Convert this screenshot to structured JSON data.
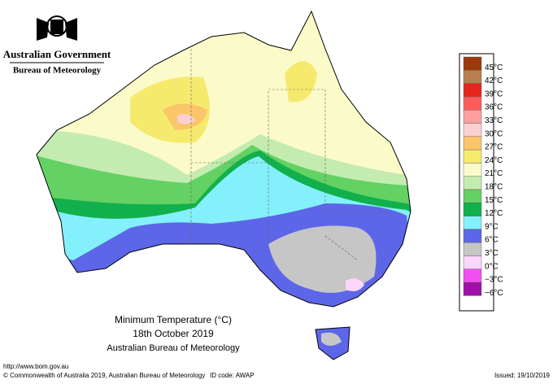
{
  "header": {
    "government": "Australian Government",
    "bureau": "Bureau of Meteorology"
  },
  "legend": {
    "items": [
      {
        "label": "45°C",
        "color": "#9b3a0c"
      },
      {
        "label": "42°C",
        "color": "#b97f4f"
      },
      {
        "label": "39°C",
        "color": "#e8241f"
      },
      {
        "label": "36°C",
        "color": "#ff5b5b"
      },
      {
        "label": "33°C",
        "color": "#ff9e9e"
      },
      {
        "label": "30°C",
        "color": "#fcd0d0"
      },
      {
        "label": "27°C",
        "color": "#fbc56a"
      },
      {
        "label": "24°C",
        "color": "#f6ea6e"
      },
      {
        "label": "21°C",
        "color": "#fbfbc9"
      },
      {
        "label": "18°C",
        "color": "#c4ecb0"
      },
      {
        "label": "15°C",
        "color": "#63d163"
      },
      {
        "label": "12°C",
        "color": "#11b04c"
      },
      {
        "label": "9°C",
        "color": "#84f0fb"
      },
      {
        "label": "6°C",
        "color": "#5d66e8"
      },
      {
        "label": "3°C",
        "color": "#c6c6c6"
      },
      {
        "label": "0°C",
        "color": "#fcd6fc"
      },
      {
        "label": "−3°C",
        "color": "#f24ef2"
      },
      {
        "label": "−6°C",
        "color": "#a010a8"
      }
    ]
  },
  "title": {
    "line1": "Minimum Temperature (°C)",
    "line2": "18th October 2019",
    "line3": "Australian Bureau of Meteorology"
  },
  "footer": {
    "url": "http://www.bom.gov.au",
    "copyright": "© Commonwealth of Australia 2019, Australian Bureau of Meteorology",
    "id_code": "ID code: AWAP",
    "issued": "Issued: 19/10/2019"
  }
}
